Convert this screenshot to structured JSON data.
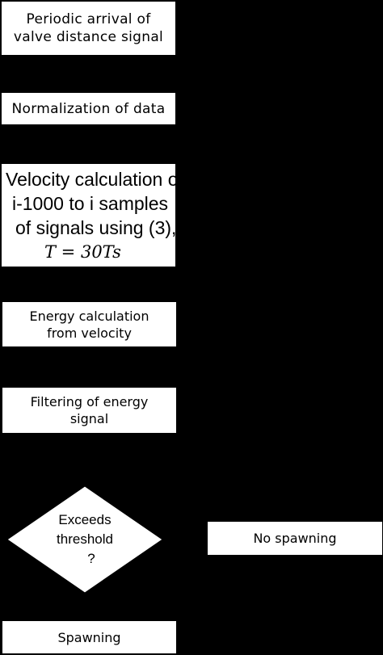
{
  "flowchart": {
    "steps": [
      {
        "lines": [
          "Periodic arrival of",
          "valve distance signal"
        ]
      },
      {
        "lines": [
          "Normalization of data"
        ]
      },
      {
        "lines": [
          "Velocity calculation of",
          "i-1000 to i samples",
          "of signals using (3),",
          "T = 30Ts"
        ]
      },
      {
        "lines": [
          "Energy calculation",
          "from velocity"
        ]
      },
      {
        "lines": [
          "Filtering of energy",
          "signal"
        ]
      }
    ],
    "decision": {
      "lines": [
        "Exceeds",
        "threshold",
        "?"
      ]
    },
    "outcome_no": {
      "label": "No spawning"
    },
    "outcome_yes": {
      "label": "Spawning"
    }
  }
}
